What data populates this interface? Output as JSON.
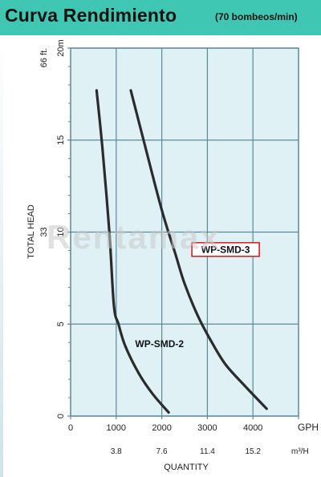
{
  "header": {
    "title": "Curva Rendimiento",
    "subtitle": "(70 bombeos/min)"
  },
  "watermark": "Rentamax",
  "colors": {
    "header_bg": "#3fc7b4",
    "plot_bg": "#dff1f5",
    "grid": "#5a8a9a",
    "curve": "#2b2b2b",
    "label_box_border": "#d82020"
  },
  "chart_data": {
    "type": "line",
    "x_axis": {
      "unit": "GPH",
      "ticks": [
        "0",
        "1000",
        "2000",
        "3000",
        "4000"
      ],
      "secondary_unit": "m³/H",
      "secondary_ticks": [
        "3.8",
        "7.6",
        "11.4",
        "15.2"
      ],
      "label": "QUANTITY",
      "range": [
        0,
        5000
      ]
    },
    "y_axis": {
      "label": "TOTAL HEAD",
      "meters_ticks": [
        "0",
        "5",
        "10",
        "15",
        "20m"
      ],
      "feet_ticks": [
        "33",
        "66 ft."
      ],
      "range_m": [
        0,
        20
      ]
    },
    "grid": true,
    "series": [
      {
        "name": "WP-SMD-2",
        "label_boxed": false,
        "x": [
          570,
          700,
          850,
          950,
          1050,
          1200,
          1500,
          1800,
          2150
        ],
        "y": [
          17.7,
          14.5,
          10.0,
          6.0,
          5.0,
          3.8,
          2.3,
          1.2,
          0.2
        ]
      },
      {
        "name": "WP-SMD-3",
        "label_boxed": true,
        "x": [
          1320,
          1600,
          2000,
          2300,
          2500,
          2800,
          3100,
          3400,
          3800,
          4300
        ],
        "y": [
          17.7,
          15.0,
          11.2,
          8.8,
          7.2,
          5.4,
          4.0,
          2.8,
          1.7,
          0.4
        ]
      }
    ]
  }
}
